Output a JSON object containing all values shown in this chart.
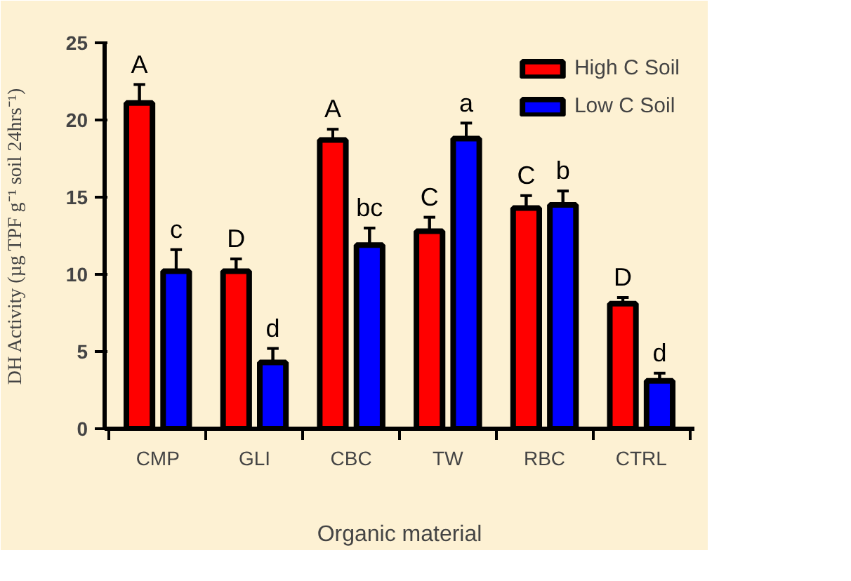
{
  "chart_data": {
    "type": "bar",
    "xlabel": "Organic material",
    "ylabel": "DH Activity (µg TPF g⁻¹ soil 24hrs⁻¹)",
    "categories": [
      "CMP",
      "GLI",
      "CBC",
      "TW",
      "RBC",
      "CTRL"
    ],
    "series": [
      {
        "name": "High C Soil",
        "color": "#ff0000",
        "values": [
          21.1,
          10.2,
          18.7,
          12.8,
          14.3,
          8.1
        ],
        "errors": [
          1.2,
          0.8,
          0.7,
          0.9,
          0.8,
          0.4
        ],
        "value_labels": [
          "A",
          "D",
          "A",
          "C",
          "C",
          "D"
        ]
      },
      {
        "name": "Low C Soil",
        "color": "#0000ff",
        "values": [
          10.2,
          4.3,
          11.9,
          18.8,
          14.5,
          3.1
        ],
        "errors": [
          1.4,
          0.9,
          1.1,
          1.0,
          0.9,
          0.5
        ],
        "value_labels": [
          "c",
          "d",
          "bc",
          "a",
          "b",
          "d"
        ]
      }
    ],
    "ylim": [
      0,
      25
    ],
    "yticks": [
      0,
      5,
      10,
      15,
      20,
      25
    ],
    "grid": false,
    "legend": "top right"
  }
}
